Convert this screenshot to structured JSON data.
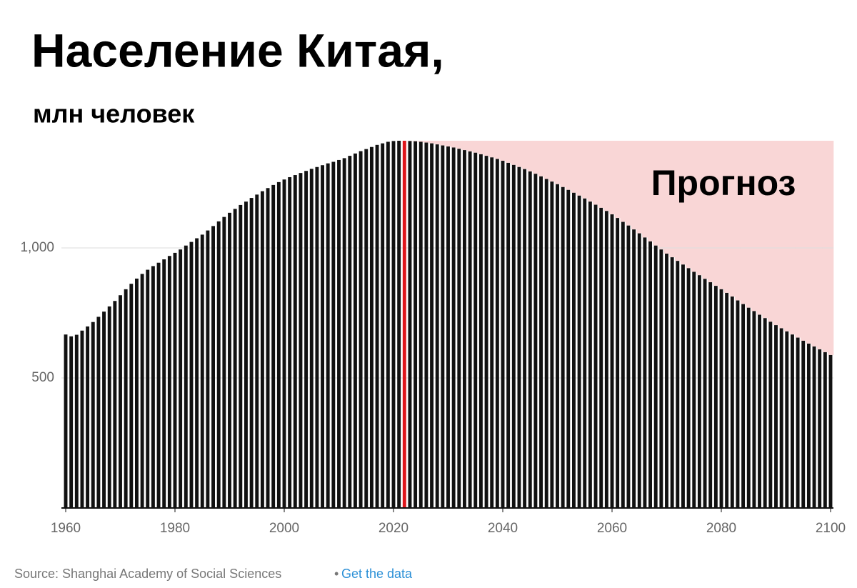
{
  "chart_data": {
    "type": "bar",
    "title": "Население Китая,",
    "subtitle": "млн человек",
    "annotation": "Прогноз",
    "source": "Source: Shanghai Academy of Social Sciences",
    "link": "Get the data",
    "x": [
      1960,
      1961,
      1962,
      1963,
      1964,
      1965,
      1966,
      1967,
      1968,
      1969,
      1970,
      1971,
      1972,
      1973,
      1974,
      1975,
      1976,
      1977,
      1978,
      1979,
      1980,
      1981,
      1982,
      1983,
      1984,
      1985,
      1986,
      1987,
      1988,
      1989,
      1990,
      1991,
      1992,
      1993,
      1994,
      1995,
      1996,
      1997,
      1998,
      1999,
      2000,
      2001,
      2002,
      2003,
      2004,
      2005,
      2006,
      2007,
      2008,
      2009,
      2010,
      2011,
      2012,
      2013,
      2014,
      2015,
      2016,
      2017,
      2018,
      2019,
      2020,
      2021,
      2022,
      2023,
      2024,
      2025,
      2026,
      2027,
      2028,
      2029,
      2030,
      2031,
      2032,
      2033,
      2034,
      2035,
      2036,
      2037,
      2038,
      2039,
      2040,
      2041,
      2042,
      2043,
      2044,
      2045,
      2046,
      2047,
      2048,
      2049,
      2050,
      2051,
      2052,
      2053,
      2054,
      2055,
      2056,
      2057,
      2058,
      2059,
      2060,
      2061,
      2062,
      2063,
      2064,
      2065,
      2066,
      2067,
      2068,
      2069,
      2070,
      2071,
      2072,
      2073,
      2074,
      2075,
      2076,
      2077,
      2078,
      2079,
      2080,
      2081,
      2082,
      2083,
      2084,
      2085,
      2086,
      2087,
      2088,
      2089,
      2090,
      2091,
      2092,
      2093,
      2094,
      2095,
      2096,
      2097,
      2098,
      2099,
      2100
    ],
    "values": [
      667,
      660,
      666,
      682,
      698,
      715,
      735,
      755,
      775,
      796,
      818,
      841,
      862,
      882,
      900,
      916,
      930,
      943,
      956,
      969,
      981,
      994,
      1009,
      1023,
      1037,
      1051,
      1067,
      1084,
      1102,
      1119,
      1135,
      1150,
      1165,
      1178,
      1192,
      1205,
      1218,
      1230,
      1242,
      1253,
      1263,
      1272,
      1280,
      1288,
      1296,
      1304,
      1311,
      1318,
      1325,
      1331,
      1338,
      1345,
      1354,
      1363,
      1372,
      1380,
      1388,
      1396,
      1402,
      1408,
      1411,
      1412,
      1412,
      1411,
      1410,
      1408,
      1405,
      1402,
      1398,
      1394,
      1390,
      1386,
      1381,
      1376,
      1371,
      1366,
      1360,
      1354,
      1348,
      1342,
      1335,
      1327,
      1319,
      1311,
      1303,
      1294,
      1285,
      1275,
      1265,
      1255,
      1245,
      1234,
      1223,
      1212,
      1201,
      1190,
      1178,
      1166,
      1154,
      1142,
      1129,
      1115,
      1100,
      1086,
      1071,
      1056,
      1040,
      1025,
      1009,
      994,
      978,
      964,
      950,
      936,
      922,
      908,
      895,
      881,
      868,
      854,
      841,
      827,
      813,
      798,
      784,
      770,
      757,
      743,
      730,
      716,
      703,
      691,
      679,
      667,
      655,
      643,
      632,
      621,
      610,
      599,
      588
    ],
    "color": "#111111",
    "highlight_x": 2022,
    "highlight_color": "#e0161b",
    "forecast_from": 2023,
    "forecast_color": "#f9d6d6",
    "xlim": [
      1960,
      2100
    ],
    "xticks": [
      1960,
      1980,
      2000,
      2020,
      2040,
      2060,
      2080,
      2100
    ],
    "ylim": [
      0,
      1412
    ],
    "yticks": [
      500,
      {
        "value": 1000,
        "label": "1,000"
      }
    ],
    "grid": true
  }
}
